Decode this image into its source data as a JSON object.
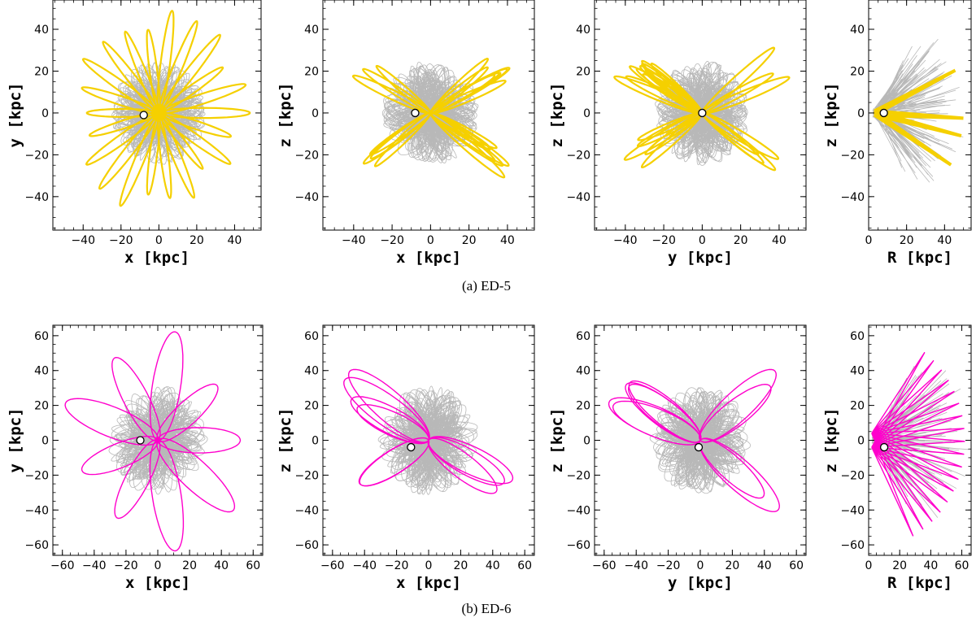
{
  "captions": {
    "a": "(a) ED-5",
    "b": "(b) ED-6"
  },
  "colors": {
    "ed5_highlight": "#f5d000",
    "ed6_highlight": "#ff00cc",
    "background_orbits": "#a0a0a0",
    "sun_marker_fill": "#ffffff"
  },
  "chart_data": [
    {
      "type": "line",
      "panel": "ED-5 x-y",
      "group": "ED-5",
      "xlabel": "x [kpc]",
      "ylabel": "y [kpc]",
      "xlim": [
        -56,
        54
      ],
      "ylim": [
        -56,
        54
      ],
      "xticks": [
        -40,
        -20,
        0,
        20,
        40
      ],
      "yticks": [
        -40,
        -20,
        0,
        20,
        40
      ],
      "highlight_color": "#f5d000",
      "sun": [
        -8,
        -1
      ]
    },
    {
      "type": "line",
      "panel": "ED-5 x-z",
      "group": "ED-5",
      "xlabel": "x [kpc]",
      "ylabel": "z [kpc]",
      "xlim": [
        -56,
        54
      ],
      "ylim": [
        -56,
        54
      ],
      "xticks": [
        -40,
        -20,
        0,
        20,
        40
      ],
      "yticks": [
        -40,
        -20,
        0,
        20,
        40
      ],
      "highlight_color": "#f5d000",
      "sun": [
        -8,
        0
      ]
    },
    {
      "type": "line",
      "panel": "ED-5 y-z",
      "group": "ED-5",
      "xlabel": "y [kpc]",
      "ylabel": "z [kpc]",
      "xlim": [
        -56,
        54
      ],
      "ylim": [
        -56,
        54
      ],
      "xticks": [
        -40,
        -20,
        0,
        20,
        40
      ],
      "yticks": [
        -40,
        -20,
        0,
        20,
        40
      ],
      "highlight_color": "#f5d000",
      "sun": [
        0,
        0
      ]
    },
    {
      "type": "line",
      "panel": "ED-5 R-z",
      "group": "ED-5",
      "xlabel": "R [kpc]",
      "ylabel": "z [kpc]",
      "xlim": [
        0,
        54
      ],
      "ylim": [
        -56,
        54
      ],
      "xticks": [
        0,
        20,
        40
      ],
      "yticks": [
        -40,
        -20,
        0,
        20,
        40
      ],
      "highlight_color": "#f5d000",
      "sun": [
        8,
        0
      ]
    },
    {
      "type": "line",
      "panel": "ED-6 x-y",
      "group": "ED-6",
      "xlabel": "x [kpc]",
      "ylabel": "y [kpc]",
      "xlim": [
        -66,
        66
      ],
      "ylim": [
        -66,
        66
      ],
      "xticks": [
        -60,
        -40,
        -20,
        0,
        20,
        40,
        60
      ],
      "yticks": [
        -60,
        -40,
        -20,
        0,
        20,
        40,
        60
      ],
      "highlight_color": "#ff00cc",
      "sun": [
        -11,
        0
      ]
    },
    {
      "type": "line",
      "panel": "ED-6 x-z",
      "group": "ED-6",
      "xlabel": "x [kpc]",
      "ylabel": "z [kpc]",
      "xlim": [
        -66,
        66
      ],
      "ylim": [
        -66,
        66
      ],
      "xticks": [
        -60,
        -40,
        -20,
        0,
        20,
        40,
        60
      ],
      "yticks": [
        -60,
        -40,
        -20,
        0,
        20,
        40,
        60
      ],
      "highlight_color": "#ff00cc",
      "sun": [
        -11,
        -4
      ]
    },
    {
      "type": "line",
      "panel": "ED-6 y-z",
      "group": "ED-6",
      "xlabel": "y [kpc]",
      "ylabel": "z [kpc]",
      "xlim": [
        -66,
        66
      ],
      "ylim": [
        -66,
        66
      ],
      "xticks": [
        -60,
        -40,
        -20,
        0,
        20,
        40,
        60
      ],
      "yticks": [
        -60,
        -40,
        -20,
        0,
        20,
        40,
        60
      ],
      "highlight_color": "#ff00cc",
      "sun": [
        -1,
        -4
      ]
    },
    {
      "type": "line",
      "panel": "ED-6 R-z",
      "group": "ED-6",
      "xlabel": "R [kpc]",
      "ylabel": "z [kpc]",
      "xlim": [
        0,
        66
      ],
      "ylim": [
        -66,
        66
      ],
      "xticks": [
        0,
        20,
        40,
        60
      ],
      "yticks": [
        -60,
        -40,
        -20,
        0,
        20,
        40,
        60
      ],
      "highlight_color": "#ff00cc",
      "sun": [
        10,
        -4
      ]
    }
  ]
}
